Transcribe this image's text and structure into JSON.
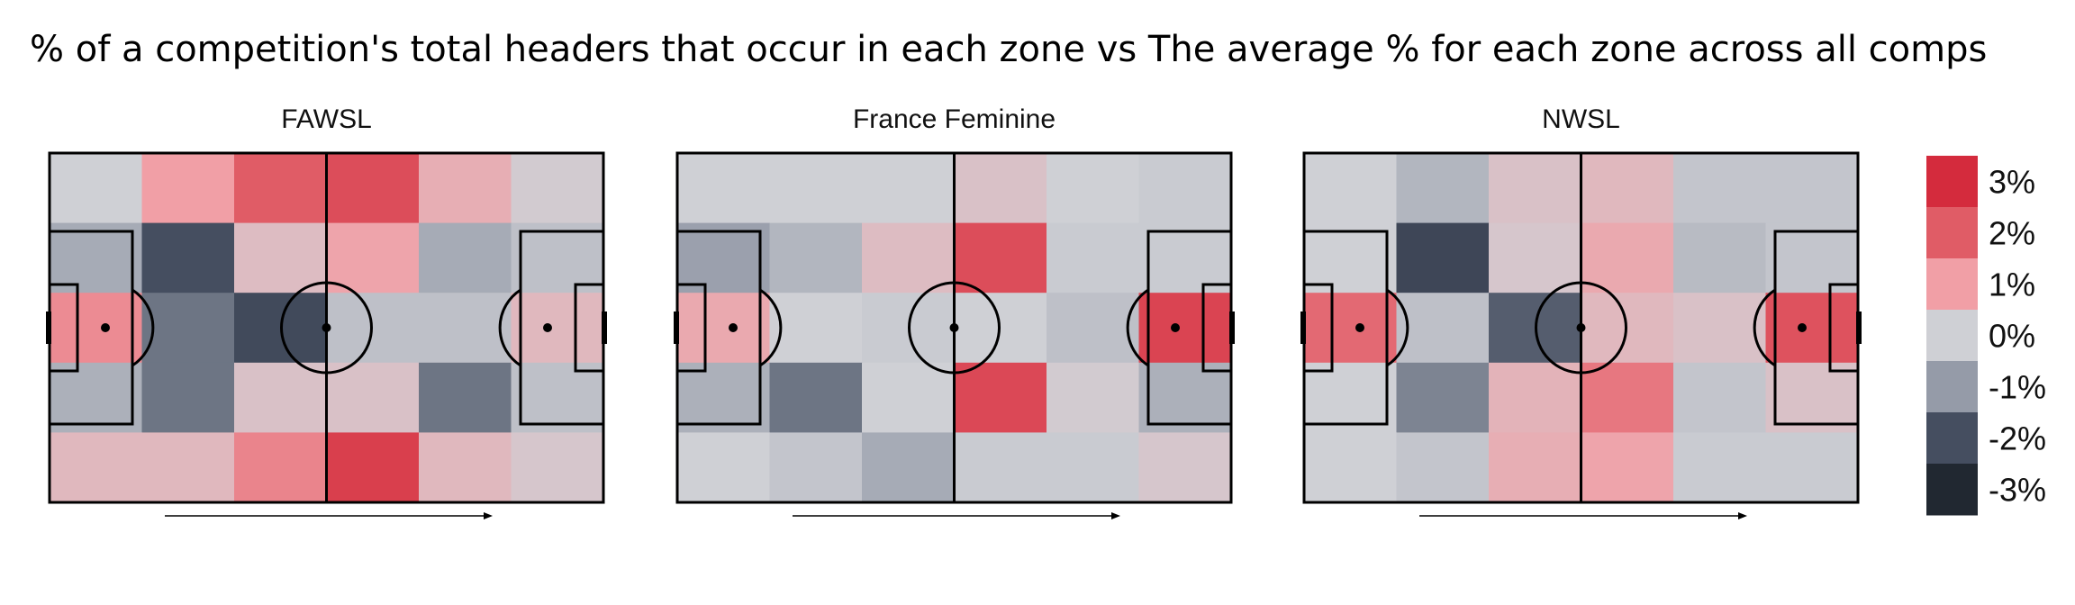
{
  "title": "% of a competition's total headers that occur in each zone vs The average % for each zone across all comps",
  "chart_data": {
    "type": "heatmap",
    "title": "% of a competition's total headers that occur in each zone vs The average % for each zone across all comps",
    "grid": {
      "columns": 6,
      "rows": 5
    },
    "value_unit": "% difference vs all-competition average",
    "panels": [
      {
        "name": "FAWSL",
        "values": [
          [
            0.0,
            1.0,
            2.0,
            2.3,
            0.7,
            0.1
          ],
          [
            -0.7,
            -2.0,
            0.4,
            0.9,
            -0.7,
            -0.3
          ],
          [
            1.3,
            -1.5,
            -2.1,
            -0.3,
            -0.3,
            0.5
          ],
          [
            -0.6,
            -1.5,
            0.3,
            0.3,
            -1.5,
            -0.3
          ],
          [
            0.5,
            0.5,
            1.4,
            2.6,
            0.5,
            0.2
          ]
        ]
      },
      {
        "name": "France Feminine",
        "values": [
          [
            0.0,
            0.0,
            0.0,
            0.3,
            0.0,
            -0.1
          ],
          [
            -0.9,
            -0.5,
            0.4,
            2.3,
            -0.1,
            -0.1
          ],
          [
            0.8,
            0.0,
            -0.1,
            0.0,
            -0.3,
            2.5
          ],
          [
            -0.6,
            -1.5,
            0.0,
            2.4,
            0.1,
            -0.6
          ],
          [
            0.0,
            -0.2,
            -0.7,
            -0.1,
            -0.1,
            0.2
          ]
        ]
      },
      {
        "name": "NWSL",
        "values": [
          [
            0.0,
            -0.5,
            0.3,
            0.5,
            -0.2,
            -0.2
          ],
          [
            0.0,
            -2.2,
            0.2,
            0.8,
            -0.4,
            -0.2
          ],
          [
            1.8,
            -0.3,
            -1.8,
            0.5,
            0.3,
            2.2
          ],
          [
            0.0,
            -1.3,
            0.6,
            1.6,
            -0.2,
            0.3
          ],
          [
            0.0,
            -0.2,
            0.7,
            0.9,
            -0.1,
            -0.1
          ]
        ]
      }
    ],
    "colorbar": {
      "labels": [
        "3%",
        "2%",
        "1%",
        "0%",
        "-1%",
        "-2%",
        "-3%"
      ],
      "colors": [
        "#d42b3d",
        "#e05c66",
        "#f19fa6",
        "#cfd0d5",
        "#959ba8",
        "#454e60",
        "#212831"
      ]
    }
  }
}
